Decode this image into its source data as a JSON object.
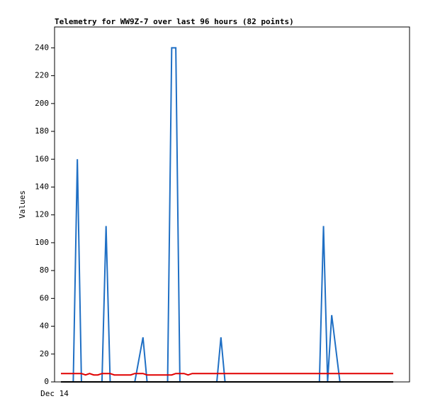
{
  "chart_data": {
    "type": "line",
    "title": "Telemetry for WW9Z-7 over last 96 hours (82 points)",
    "y_label": "Values",
    "categories": [
      "Dec 14",
      null,
      null,
      null,
      null,
      null,
      null,
      null,
      null,
      null,
      null,
      null,
      null,
      null,
      null,
      null,
      null,
      null,
      null,
      null,
      null,
      null,
      null,
      null,
      null,
      null,
      null,
      null,
      null,
      null,
      null,
      null,
      null,
      null,
      null,
      null,
      null,
      null,
      null,
      null,
      null,
      null,
      null,
      null,
      null,
      null,
      null,
      null,
      null,
      null,
      null,
      null,
      null,
      null,
      null,
      null,
      null,
      null,
      null,
      null,
      null,
      null,
      null,
      null,
      null,
      null,
      null,
      null,
      null,
      null,
      null,
      null,
      null,
      null,
      null,
      null,
      null,
      null,
      null,
      null,
      null,
      null
    ],
    "series": [
      {
        "color": "#1f6fc4",
        "values": [
          0,
          0,
          0,
          0,
          160,
          0,
          0,
          0,
          0,
          0,
          0,
          112,
          0,
          0,
          0,
          0,
          0,
          0,
          0,
          16,
          32,
          0,
          0,
          0,
          0,
          0,
          0,
          240,
          240,
          0,
          0,
          0,
          0,
          0,
          0,
          0,
          0,
          0,
          0,
          32,
          0,
          0,
          0,
          0,
          0,
          0,
          0,
          0,
          0,
          0,
          0,
          0,
          0,
          0,
          0,
          0,
          0,
          0,
          0,
          0,
          0,
          0,
          0,
          0,
          112,
          0,
          48,
          24,
          0,
          0,
          0,
          0,
          0,
          0,
          0,
          0,
          0,
          0,
          0,
          0,
          0,
          0
        ]
      },
      {
        "color": "#e00000",
        "values": [
          6,
          6,
          6,
          6,
          6,
          6,
          5,
          6,
          5,
          5,
          6,
          6,
          6,
          5,
          5,
          5,
          5,
          5,
          6,
          6,
          6,
          5,
          5,
          5,
          5,
          5,
          5,
          5,
          6,
          6,
          6,
          5,
          6,
          6,
          6,
          6,
          6,
          6,
          6,
          6,
          6,
          6,
          6,
          6,
          6,
          6,
          6,
          6,
          6,
          6,
          6,
          6,
          6,
          6,
          6,
          6,
          6,
          6,
          6,
          6,
          6,
          6,
          6,
          6,
          6,
          6,
          6,
          6,
          6,
          6,
          6,
          6,
          6,
          6,
          6,
          6,
          6,
          6,
          6,
          6,
          6,
          6
        ]
      },
      {
        "color": "#000000",
        "values": [
          0,
          0,
          0,
          0,
          0,
          0,
          0,
          0,
          0,
          0,
          0,
          0,
          0,
          0,
          0,
          0,
          0,
          0,
          0,
          0,
          0,
          0,
          0,
          0,
          0,
          0,
          0,
          0,
          0,
          0,
          0,
          0,
          0,
          0,
          0,
          0,
          0,
          0,
          0,
          0,
          0,
          0,
          0,
          0,
          0,
          0,
          0,
          0,
          0,
          0,
          0,
          0,
          0,
          0,
          0,
          0,
          0,
          0,
          0,
          0,
          0,
          0,
          0,
          0,
          0,
          0,
          0,
          0,
          0,
          0,
          0,
          0,
          0,
          0,
          0,
          0,
          0,
          0,
          0,
          0,
          0,
          0
        ]
      }
    ],
    "ylim": [
      0,
      255
    ],
    "yticks": [
      0,
      20,
      40,
      60,
      80,
      100,
      120,
      140,
      160,
      180,
      200,
      220,
      240
    ],
    "grid": false
  }
}
